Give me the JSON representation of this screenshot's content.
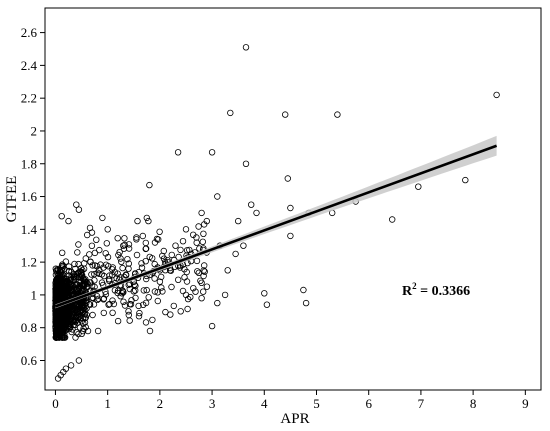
{
  "chart_data": {
    "type": "scatter",
    "title": "",
    "xlabel": "APR",
    "ylabel": "GTFEE",
    "xlim": [
      -0.2,
      9.3
    ],
    "ylim": [
      0.42,
      2.75
    ],
    "x_ticks": [
      0,
      1,
      2,
      3,
      4,
      5,
      6,
      7,
      8,
      9
    ],
    "y_ticks": [
      0.6,
      0.8,
      1,
      1.2,
      1.4,
      1.6,
      1.8,
      2,
      2.2,
      2.4,
      2.6
    ],
    "x_tick_labels": [
      "0",
      "1",
      "2",
      "3",
      "4",
      "5",
      "6",
      "7",
      "8",
      "9"
    ],
    "y_tick_labels": [
      "0.6",
      "0.8",
      "1",
      "1.2",
      "1.4",
      "1.6",
      "1.8",
      "2",
      "2.2",
      "2.4",
      "2.6"
    ],
    "grid": false,
    "annotation": {
      "base": "R",
      "sup": "2",
      "rest": " = 0.3366"
    },
    "fit_line": {
      "x": [
        0,
        8.45
      ],
      "y": [
        0.93,
        1.91
      ],
      "ci_half_width": [
        0.012,
        0.06
      ],
      "line_color": "#000000",
      "band_color": "#c8c8c8"
    },
    "outliers": [
      [
        0.05,
        0.49
      ],
      [
        0.1,
        0.51
      ],
      [
        0.15,
        0.53
      ],
      [
        0.2,
        0.55
      ],
      [
        0.3,
        0.57
      ],
      [
        0.45,
        0.6
      ],
      [
        0.4,
        1.55
      ],
      [
        0.45,
        1.52
      ],
      [
        0.12,
        1.48
      ],
      [
        0.25,
        1.45
      ],
      [
        0.7,
        1.38
      ],
      [
        0.9,
        1.47
      ],
      [
        1.0,
        1.4
      ],
      [
        1.3,
        1.3
      ],
      [
        1.55,
        1.35
      ],
      [
        1.75,
        1.47
      ],
      [
        1.8,
        1.67
      ],
      [
        1.9,
        1.1
      ],
      [
        2.0,
        1.15
      ],
      [
        2.1,
        1.2
      ],
      [
        2.3,
        1.3
      ],
      [
        2.35,
        1.87
      ],
      [
        2.5,
        1.4
      ],
      [
        2.6,
        1.25
      ],
      [
        2.7,
        1.35
      ],
      [
        2.8,
        1.5
      ],
      [
        2.85,
        1.43
      ],
      [
        2.9,
        1.05
      ],
      [
        3.0,
        1.87
      ],
      [
        3.1,
        1.6
      ],
      [
        3.15,
        1.3
      ],
      [
        3.25,
        1.0
      ],
      [
        3.3,
        1.15
      ],
      [
        3.35,
        2.11
      ],
      [
        3.45,
        1.25
      ],
      [
        3.5,
        1.45
      ],
      [
        3.6,
        1.3
      ],
      [
        3.65,
        1.8
      ],
      [
        3.65,
        2.51
      ],
      [
        3.75,
        1.55
      ],
      [
        3.85,
        1.5
      ],
      [
        4.0,
        1.01
      ],
      [
        4.05,
        0.94
      ],
      [
        4.4,
        2.1
      ],
      [
        4.45,
        1.71
      ],
      [
        4.5,
        1.36
      ],
      [
        4.5,
        1.53
      ],
      [
        4.75,
        1.03
      ],
      [
        4.8,
        0.95
      ],
      [
        4.85,
        1.5
      ],
      [
        5.3,
        1.5
      ],
      [
        5.4,
        2.1
      ],
      [
        5.75,
        1.57
      ],
      [
        6.45,
        1.46
      ],
      [
        6.95,
        1.66
      ],
      [
        7.85,
        1.7
      ],
      [
        8.45,
        2.22
      ],
      [
        3.0,
        0.81
      ],
      [
        3.1,
        0.95
      ],
      [
        2.8,
        0.98
      ],
      [
        2.2,
        0.88
      ],
      [
        1.2,
        0.84
      ],
      [
        1.4,
        0.9
      ],
      [
        1.6,
        0.87
      ],
      [
        2.4,
        0.9
      ],
      [
        2.5,
        1.0
      ]
    ],
    "cluster": {
      "description": "dense cloud of points near x=0",
      "x_range": [
        0,
        0.6
      ],
      "y_range": [
        0.74,
        1.35
      ],
      "center_y": 0.93,
      "count": 1400
    },
    "mid_scatter": {
      "x_range": [
        0.4,
        2.9
      ],
      "y_range": [
        0.78,
        1.45
      ],
      "count": 260
    }
  }
}
